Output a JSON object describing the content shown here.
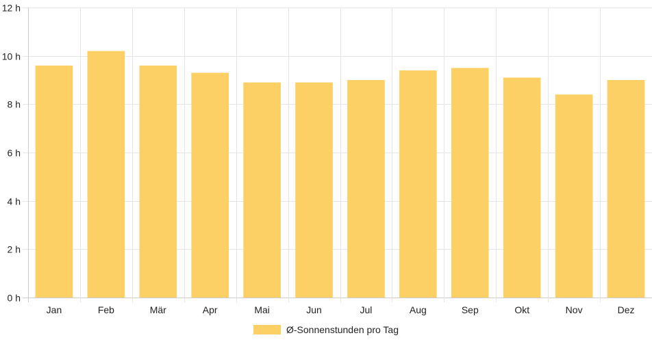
{
  "chart_data": {
    "type": "bar",
    "categories": [
      "Jan",
      "Feb",
      "Mär",
      "Apr",
      "Mai",
      "Jun",
      "Jul",
      "Aug",
      "Sep",
      "Okt",
      "Nov",
      "Dez"
    ],
    "series": [
      {
        "name": "Ø-Sonnenstunden pro Tag",
        "values": [
          9.6,
          10.2,
          9.6,
          9.3,
          8.9,
          8.9,
          9.0,
          9.4,
          9.5,
          9.1,
          8.4,
          9.0
        ],
        "color": "#fdd066"
      }
    ],
    "y_ticks": [
      "0 h",
      "2 h",
      "4 h",
      "6 h",
      "8 h",
      "10 h",
      "12 h"
    ],
    "ylim": [
      0,
      12
    ],
    "y_step": 2,
    "grid": true,
    "gridColor": "#e5e5e5",
    "axisColor": "#cccccc",
    "legend_position": "bottom"
  }
}
